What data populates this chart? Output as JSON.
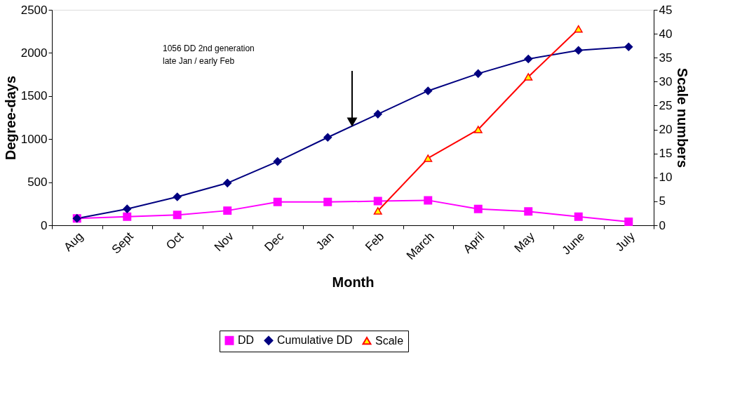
{
  "chart_data": {
    "type": "line",
    "xlabel": "Month",
    "ylabel": "Degree-days",
    "y2label": "Scale numbers",
    "categories": [
      "Aug",
      "Sept",
      "Oct",
      "Nov",
      "Dec",
      "Jan",
      "Feb",
      "March",
      "April",
      "May",
      "June",
      "July"
    ],
    "series": [
      {
        "name": "DD",
        "color": "#ff00ff",
        "marker": "square",
        "values": [
          80,
          100,
          120,
          170,
          270,
          270,
          280,
          290,
          190,
          160,
          100,
          40
        ]
      },
      {
        "name": "Cumulative DD",
        "color": "#000080",
        "marker": "diamond",
        "values": [
          80,
          190,
          330,
          490,
          740,
          1020,
          1290,
          1560,
          1760,
          1930,
          2030,
          2070
        ]
      },
      {
        "name": "Scale",
        "color": "#ff0000",
        "marker": "triangle",
        "axis": "y2",
        "values": [
          null,
          null,
          null,
          null,
          null,
          null,
          3,
          14,
          20,
          31,
          41,
          null
        ]
      }
    ],
    "ylim": [
      0,
      2500
    ],
    "yticks": [
      0,
      500,
      1000,
      1500,
      2000,
      2500
    ],
    "y2lim": [
      0,
      45
    ],
    "y2ticks": [
      0,
      5,
      10,
      15,
      20,
      25,
      30,
      35,
      40,
      45
    ],
    "annotations": [
      "1056 DD 2nd generation\nlate Jan / early Feb"
    ],
    "legend": "bottom",
    "grid": false,
    "line_style": "solid"
  }
}
